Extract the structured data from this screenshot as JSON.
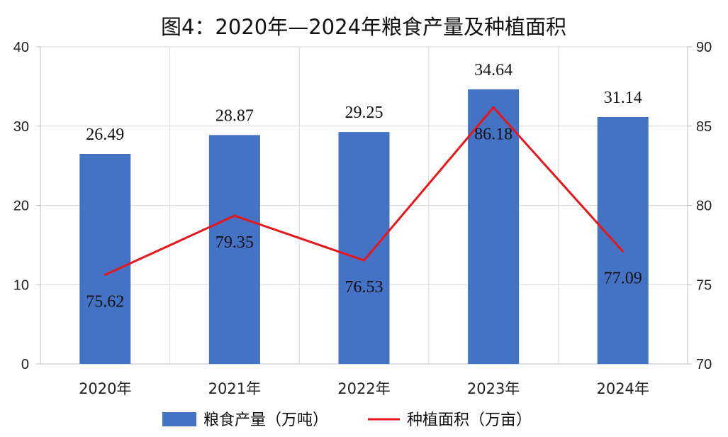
{
  "chart_data": {
    "type": "bar",
    "title": "图4：2020年—2024年粮食产量及种植面积",
    "categories": [
      "2020年",
      "2021年",
      "2022年",
      "2023年",
      "2024年"
    ],
    "series": [
      {
        "name": "粮食产量（万吨）",
        "type": "bar",
        "axis": "left",
        "color": "#4472c4",
        "values": [
          26.49,
          28.87,
          29.25,
          34.64,
          31.14
        ],
        "labels": [
          "26.49",
          "28.87",
          "29.25",
          "34.64",
          "31.14"
        ]
      },
      {
        "name": "种植面积（万亩）",
        "type": "line",
        "axis": "right",
        "color": "#e8151b",
        "values": [
          75.62,
          79.35,
          76.53,
          86.18,
          77.09
        ],
        "labels": [
          "75.62",
          "79.35",
          "76.53",
          "86.18",
          "77.09"
        ]
      }
    ],
    "y_left": {
      "ylim": [
        0,
        40
      ],
      "ticks": [
        "0",
        "10",
        "20",
        "30",
        "40"
      ]
    },
    "y_right": {
      "ylim": [
        70,
        90
      ],
      "ticks": [
        "70",
        "75",
        "80",
        "85",
        "90"
      ]
    },
    "grid": true,
    "legend": "bottom-center"
  }
}
